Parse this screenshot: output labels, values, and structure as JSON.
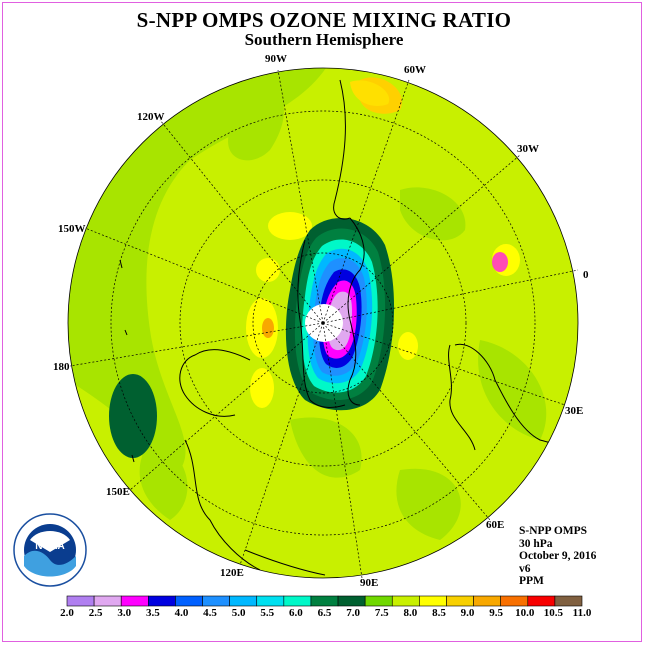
{
  "title": "S-NPP OMPS OZONE MIXING RATIO",
  "subtitle": "Southern Hemisphere",
  "longitude_labels": [
    {
      "text": "90W"
    },
    {
      "text": "60W"
    },
    {
      "text": "30W"
    },
    {
      "text": "0"
    },
    {
      "text": "30E"
    },
    {
      "text": "60E"
    },
    {
      "text": "90E"
    },
    {
      "text": "120E"
    },
    {
      "text": "150E"
    },
    {
      "text": "180"
    },
    {
      "text": "150W"
    },
    {
      "text": "120W"
    }
  ],
  "info": {
    "instrument": "S-NPP OMPS",
    "level": "30 hPa",
    "date": "October 9, 2016",
    "version": "v6",
    "units": "PPM"
  },
  "legend": {
    "levels": [
      "2.0",
      "2.5",
      "3.0",
      "3.5",
      "4.0",
      "4.5",
      "5.0",
      "5.5",
      "6.0",
      "6.5",
      "7.0",
      "7.5",
      "8.0",
      "8.5",
      "9.0",
      "9.5",
      "10.0",
      "10.5",
      "11.0"
    ],
    "colors": [
      "#b07ff0",
      "#e0a8f0",
      "#ff00ff",
      "#0000e0",
      "#0060ff",
      "#1e90ff",
      "#00b8ff",
      "#00e0f0",
      "#00f8c8",
      "#008040",
      "#006030",
      "#70d800",
      "#c8f000",
      "#ffff00",
      "#f8d000",
      "#f8a800",
      "#f87000",
      "#f80000",
      "#806040"
    ]
  },
  "logo_text": "NOAA"
}
